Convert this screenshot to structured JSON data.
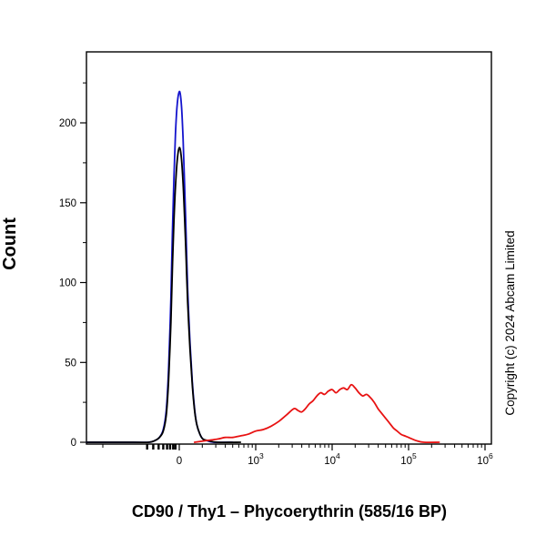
{
  "figure": {
    "copyright": "Copyright (c) 2024 Abcam Limited"
  },
  "chart_data": {
    "type": "line",
    "subtype": "flow-cytometry-histogram",
    "title": "",
    "xlabel": "CD90 / Thy1 – Phycoerythrin (585/16 BP)",
    "ylabel": "Count",
    "grid": false,
    "legend": "none",
    "x_scale": "biexponential (linear around 0, log decades up to 10^6); u-units: u=0 at value 0, u=1 at 10^3, u=2 at 10^4, u=3 at 10^5, u=4 at 10^6",
    "xlim_u": [
      -1.21,
      4.08
    ],
    "ylim": [
      0,
      244
    ],
    "y_ticks": [
      0,
      50,
      100,
      150,
      200
    ],
    "y_minor_ticks": [
      25,
      75,
      125,
      175,
      225
    ],
    "x_ticks": [
      {
        "u": 0,
        "base": "0",
        "exp": ""
      },
      {
        "u": 1,
        "base": "10",
        "exp": "3"
      },
      {
        "u": 2,
        "base": "10",
        "exp": "4"
      },
      {
        "u": 3,
        "base": "10",
        "exp": "5"
      },
      {
        "u": 4,
        "base": "10",
        "exp": "6"
      }
    ],
    "series": [
      {
        "name": "blue-curve",
        "color": "#1414cd",
        "peak_count": 219,
        "peak_at_u": 0,
        "points": [
          [
            -1.21,
            0
          ],
          [
            -0.6,
            0
          ],
          [
            -0.4,
            0
          ],
          [
            -0.32,
            1
          ],
          [
            -0.26,
            3
          ],
          [
            -0.21,
            8
          ],
          [
            -0.17,
            20
          ],
          [
            -0.14,
            45
          ],
          [
            -0.11,
            90
          ],
          [
            -0.09,
            130
          ],
          [
            -0.07,
            165
          ],
          [
            -0.05,
            193
          ],
          [
            -0.03,
            210
          ],
          [
            -0.01,
            218
          ],
          [
            0.01,
            219
          ],
          [
            0.03,
            210
          ],
          [
            0.05,
            190
          ],
          [
            0.07,
            160
          ],
          [
            0.09,
            128
          ],
          [
            0.11,
            96
          ],
          [
            0.14,
            62
          ],
          [
            0.17,
            38
          ],
          [
            0.2,
            21
          ],
          [
            0.23,
            11
          ],
          [
            0.27,
            5
          ],
          [
            0.31,
            2
          ],
          [
            0.36,
            1
          ],
          [
            0.45,
            0
          ],
          [
            0.7,
            0
          ]
        ]
      },
      {
        "name": "black-curve",
        "color": "#000000",
        "peak_count": 184,
        "peak_at_u": 0,
        "points": [
          [
            -1.21,
            0
          ],
          [
            -0.6,
            0
          ],
          [
            -0.4,
            0
          ],
          [
            -0.32,
            1
          ],
          [
            -0.26,
            3
          ],
          [
            -0.21,
            7
          ],
          [
            -0.17,
            17
          ],
          [
            -0.14,
            38
          ],
          [
            -0.11,
            75
          ],
          [
            -0.09,
            108
          ],
          [
            -0.07,
            138
          ],
          [
            -0.05,
            160
          ],
          [
            -0.03,
            175
          ],
          [
            -0.01,
            183
          ],
          [
            0.01,
            184
          ],
          [
            0.03,
            177
          ],
          [
            0.05,
            162
          ],
          [
            0.07,
            140
          ],
          [
            0.09,
            114
          ],
          [
            0.11,
            88
          ],
          [
            0.14,
            58
          ],
          [
            0.17,
            36
          ],
          [
            0.2,
            20
          ],
          [
            0.23,
            11
          ],
          [
            0.27,
            5
          ],
          [
            0.31,
            2
          ],
          [
            0.38,
            1
          ],
          [
            0.5,
            0
          ],
          [
            0.8,
            0
          ]
        ]
      },
      {
        "name": "red-curve",
        "color": "#e81212",
        "peak_count": 36,
        "peak_at_u": 2.25,
        "points": [
          [
            0.2,
            0
          ],
          [
            0.35,
            1
          ],
          [
            0.5,
            2
          ],
          [
            0.6,
            3
          ],
          [
            0.7,
            3
          ],
          [
            0.8,
            4
          ],
          [
            0.9,
            5
          ],
          [
            1.0,
            7
          ],
          [
            1.1,
            8
          ],
          [
            1.2,
            10
          ],
          [
            1.3,
            13
          ],
          [
            1.4,
            17
          ],
          [
            1.5,
            21
          ],
          [
            1.55,
            20
          ],
          [
            1.6,
            19
          ],
          [
            1.65,
            21
          ],
          [
            1.7,
            24
          ],
          [
            1.75,
            26
          ],
          [
            1.8,
            29
          ],
          [
            1.85,
            31
          ],
          [
            1.9,
            30
          ],
          [
            1.95,
            32
          ],
          [
            2.0,
            33
          ],
          [
            2.05,
            31
          ],
          [
            2.1,
            33
          ],
          [
            2.15,
            34
          ],
          [
            2.2,
            33
          ],
          [
            2.25,
            36
          ],
          [
            2.3,
            34
          ],
          [
            2.35,
            31
          ],
          [
            2.4,
            29
          ],
          [
            2.45,
            30
          ],
          [
            2.5,
            28
          ],
          [
            2.55,
            25
          ],
          [
            2.6,
            21
          ],
          [
            2.65,
            18
          ],
          [
            2.7,
            15
          ],
          [
            2.75,
            12
          ],
          [
            2.8,
            9
          ],
          [
            2.85,
            7
          ],
          [
            2.9,
            5
          ],
          [
            2.95,
            4
          ],
          [
            3.0,
            3
          ],
          [
            3.1,
            1
          ],
          [
            3.2,
            0
          ],
          [
            3.4,
            0
          ]
        ]
      }
    ]
  }
}
